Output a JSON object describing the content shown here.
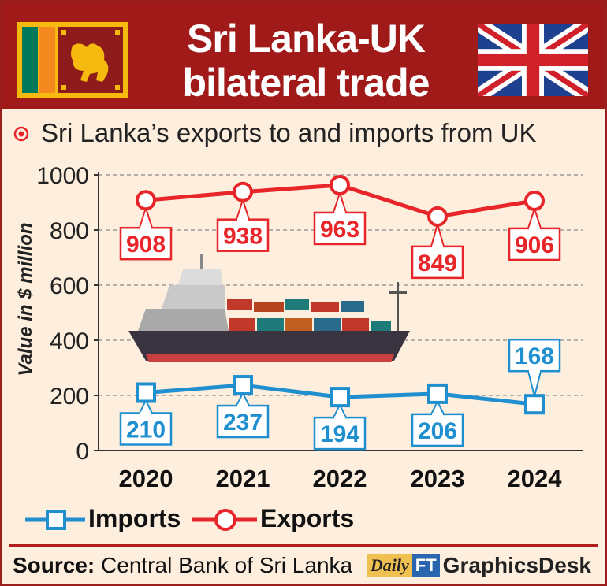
{
  "header": {
    "title_line1": "Sri Lanka-UK",
    "title_line2": "bilateral trade"
  },
  "subtitle": "Sri Lanka’s exports to and imports from UK",
  "colors": {
    "header_bg": "#a01a1a",
    "exports": "#e8262a",
    "imports": "#1f8fd0",
    "background": "#fdeedd"
  },
  "chart_data": {
    "type": "line",
    "categories": [
      "2020",
      "2021",
      "2022",
      "2023",
      "2024"
    ],
    "series": [
      {
        "name": "Exports",
        "values": [
          908,
          938,
          963,
          849,
          906
        ],
        "marker": "circle",
        "color": "#e8262a"
      },
      {
        "name": "Imports",
        "values": [
          210,
          237,
          194,
          206,
          168
        ],
        "marker": "square",
        "color": "#1f8fd0"
      }
    ],
    "ylabel": "Value in $ million",
    "ylim": [
      0,
      1000
    ],
    "yticks": [
      "0",
      "200",
      "400",
      "600",
      "800",
      "1000"
    ],
    "grid": true,
    "legend": "bottom"
  },
  "legend": {
    "imports_label": "Imports",
    "exports_label": "Exports"
  },
  "footer": {
    "source_label": "Source:",
    "source_text": "Central Bank of Sri Lanka",
    "brand_daily": "Daily",
    "brand_ft": "FT",
    "brand_desk": "GraphicsDesk"
  }
}
